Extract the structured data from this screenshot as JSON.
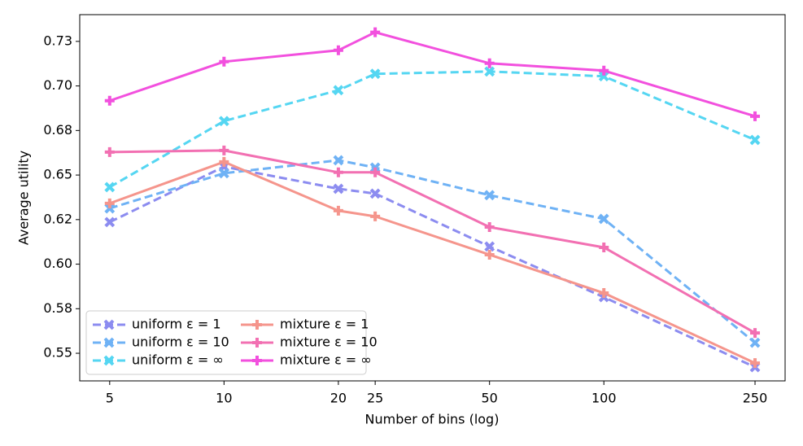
{
  "chart_data": {
    "type": "line",
    "x_label": "Number of bins (log)",
    "y_label": "Average utility",
    "log_x": true,
    "legend": "lower left",
    "legend_columns": 2,
    "x": [
      5,
      10,
      20,
      25,
      50,
      100,
      250
    ],
    "xlim": [
      4.17,
      300
    ],
    "xticks": [
      5,
      10,
      20,
      25,
      50,
      100,
      250
    ],
    "ylim": [
      0.5345,
      0.74
    ],
    "yticks": [
      {
        "value": 0.55,
        "label": "0.55"
      },
      {
        "value": 0.575,
        "label": "0.58"
      },
      {
        "value": 0.6,
        "label": "0.60"
      },
      {
        "value": 0.625,
        "label": "0.62"
      },
      {
        "value": 0.65,
        "label": "0.65"
      },
      {
        "value": 0.675,
        "label": "0.68"
      },
      {
        "value": 0.7,
        "label": "0.70"
      },
      {
        "value": 0.725,
        "label": "0.73"
      }
    ],
    "series": [
      {
        "name": "uniform ε = 1",
        "color": "#8c8cf0",
        "marker": "x",
        "dashed": true,
        "values": [
          0.6236,
          0.6547,
          0.6423,
          0.6396,
          0.6099,
          0.5815,
          0.5422
        ]
      },
      {
        "name": "uniform ε = 10",
        "color": "#6fb2f5",
        "marker": "x",
        "dashed": true,
        "values": [
          0.6313,
          0.651,
          0.6583,
          0.6542,
          0.6387,
          0.6254,
          0.5559
        ]
      },
      {
        "name": "uniform ε = ∞",
        "color": "#55d6f2",
        "marker": "x",
        "dashed": true,
        "values": [
          0.6432,
          0.6803,
          0.6976,
          0.7068,
          0.7081,
          0.7054,
          0.6697
        ]
      },
      {
        "name": "mixture ε = 1",
        "color": "#f5958c",
        "marker": "plus",
        "dashed": false,
        "values": [
          0.6341,
          0.6574,
          0.63,
          0.6268,
          0.6053,
          0.5838,
          0.5445
        ]
      },
      {
        "name": "mixture ε = 10",
        "color": "#f270b2",
        "marker": "plus",
        "dashed": false,
        "values": [
          0.6629,
          0.6638,
          0.6515,
          0.6515,
          0.6208,
          0.6094,
          0.5614
        ]
      },
      {
        "name": "mixture ε = ∞",
        "color": "#f250de",
        "marker": "plus",
        "dashed": false,
        "values": [
          0.6917,
          0.7136,
          0.72,
          0.7301,
          0.7127,
          0.7086,
          0.683
        ]
      }
    ]
  }
}
